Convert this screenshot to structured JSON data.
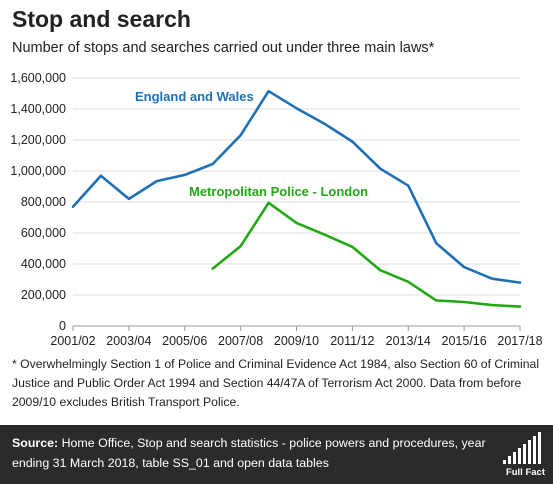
{
  "title": "Stop and search",
  "subtitle": "Number of stops and searches carried out under three main laws*",
  "footnote": "* Overwhelmingly Section 1 of Police and Criminal Evidence Act 1984, also Section 60 of Criminal Justice and Public Order Act 1994 and Section 44/47A of Terrorism Act 2000.  Data from before 2009/10 excludes British Transport Police.",
  "source": {
    "label": "Source:",
    "text": " Home Office, Stop and search statistics - police powers and procedures, year ending 31 March 2018, table SS_01 and open data tables"
  },
  "logo_text": "Full Fact",
  "chart_data": {
    "type": "line",
    "x": [
      "2001/02",
      "2002/03",
      "2003/04",
      "2004/05",
      "2005/06",
      "2006/07",
      "2007/08",
      "2008/09",
      "2009/10",
      "2010/11",
      "2011/12",
      "2012/13",
      "2013/14",
      "2014/15",
      "2015/16",
      "2016/17",
      "2017/18"
    ],
    "x_tick_labels": [
      "2001/02",
      "2003/04",
      "2005/06",
      "2007/08",
      "2009/10",
      "2011/12",
      "2013/14",
      "2015/16",
      "2017/18"
    ],
    "y_tick_labels": [
      "0",
      "200,000",
      "400,000",
      "600,000",
      "800,000",
      "1,000,000",
      "1,200,000",
      "1,400,000",
      "1,600,000"
    ],
    "ylim": [
      0,
      1600000
    ],
    "grid": true,
    "series": [
      {
        "name": "England and Wales",
        "color": "#1f6fb5",
        "values": [
          770000,
          970000,
          820000,
          935000,
          975000,
          1045000,
          1230000,
          1515000,
          1405000,
          1305000,
          1190000,
          1015000,
          905000,
          535000,
          380000,
          305000,
          280000
        ]
      },
      {
        "name": "Metropolitan Police - London",
        "color": "#22a815",
        "values": [
          null,
          null,
          null,
          null,
          null,
          370000,
          515000,
          795000,
          665000,
          590000,
          510000,
          360000,
          285000,
          165000,
          155000,
          135000,
          125000
        ]
      }
    ]
  }
}
